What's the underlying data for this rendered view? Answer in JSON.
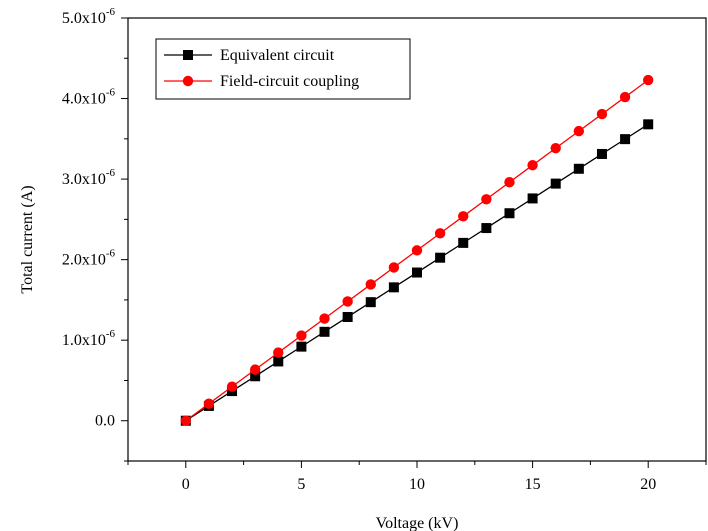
{
  "chart_data": {
    "type": "line",
    "title": "",
    "xlabel": "Voltage (kV)",
    "ylabel": "Total current (A)",
    "xlim": [
      -2.5,
      22.5
    ],
    "ylim": [
      -5e-07,
      5e-06
    ],
    "x_ticks": [
      0,
      5,
      10,
      15,
      20
    ],
    "x_tick_labels": [
      "0",
      "5",
      "10",
      "15",
      "20"
    ],
    "y_ticks": [
      0,
      1e-06,
      2e-06,
      3e-06,
      4e-06,
      5e-06
    ],
    "y_tick_labels": [
      {
        "mantissa": "0.0",
        "exponent": ""
      },
      {
        "mantissa": "1.0x10",
        "exponent": "-6"
      },
      {
        "mantissa": "2.0x10",
        "exponent": "-6"
      },
      {
        "mantissa": "3.0x10",
        "exponent": "-6"
      },
      {
        "mantissa": "4.0x10",
        "exponent": "-6"
      },
      {
        "mantissa": "5.0x10",
        "exponent": "-6"
      }
    ],
    "grid": false,
    "legend_position": "top-left",
    "x": [
      0,
      1,
      2,
      3,
      4,
      5,
      6,
      7,
      8,
      9,
      10,
      11,
      12,
      13,
      14,
      15,
      16,
      17,
      18,
      19,
      20
    ],
    "series": [
      {
        "name": "Equivalent circuit",
        "color": "#000000",
        "marker": "square",
        "values": [
          0,
          1.84e-07,
          3.68e-07,
          5.52e-07,
          7.36e-07,
          9.2e-07,
          1.104e-06,
          1.288e-06,
          1.472e-06,
          1.656e-06,
          1.84e-06,
          2.024e-06,
          2.208e-06,
          2.392e-06,
          2.576e-06,
          2.76e-06,
          2.944e-06,
          3.128e-06,
          3.312e-06,
          3.496e-06,
          3.68e-06
        ]
      },
      {
        "name": "Field-circuit coupling",
        "color": "#ff0000",
        "marker": "circle",
        "values": [
          0,
          2.115e-07,
          4.23e-07,
          6.345e-07,
          8.46e-07,
          1.0575e-06,
          1.269e-06,
          1.4805e-06,
          1.692e-06,
          1.9035e-06,
          2.115e-06,
          2.3265e-06,
          2.538e-06,
          2.7495e-06,
          2.961e-06,
          3.1725e-06,
          3.384e-06,
          3.5955e-06,
          3.807e-06,
          4.0185e-06,
          4.23e-06
        ]
      }
    ]
  }
}
